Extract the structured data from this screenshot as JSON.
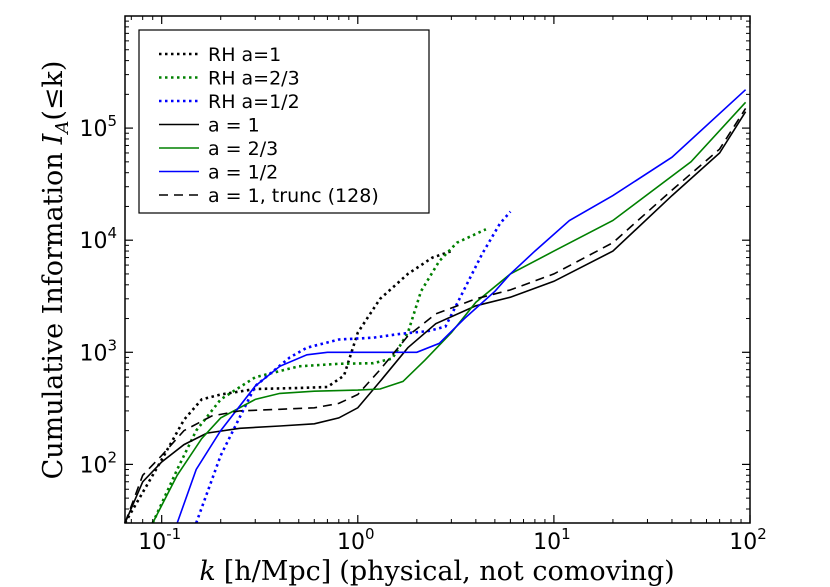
{
  "chart_data": {
    "type": "line",
    "xscale": "log",
    "yscale": "log",
    "xlim": [
      0.065,
      100
    ],
    "ylim": [
      30,
      1000000
    ],
    "xlabel_math": "k",
    "xlabel_unit": "[h/Mpc]",
    "xlabel_note": "(physical, not comoving)",
    "ylabel_text": "Cumulative Information",
    "ylabel_math": "I",
    "ylabel_sub": "A",
    "ylabel_arg": "(≤k)",
    "x_ticks": [
      {
        "value": 0.1,
        "base": "10",
        "exp": "-1"
      },
      {
        "value": 1,
        "base": "10",
        "exp": "0"
      },
      {
        "value": 10,
        "base": "10",
        "exp": "1"
      },
      {
        "value": 100,
        "base": "10",
        "exp": "2"
      }
    ],
    "y_ticks": [
      {
        "value": 100,
        "base": "10",
        "exp": "2"
      },
      {
        "value": 1000,
        "base": "10",
        "exp": "3"
      },
      {
        "value": 10000,
        "base": "10",
        "exp": "4"
      },
      {
        "value": 100000,
        "base": "10",
        "exp": "5"
      }
    ],
    "legend_position": "upper-left",
    "series": [
      {
        "name": "RH a=1",
        "color": "#000000",
        "style": "dotted",
        "x": [
          0.065,
          0.1,
          0.13,
          0.16,
          0.2,
          0.3,
          0.5,
          0.7,
          0.85,
          1.0,
          1.3,
          1.8,
          2.4,
          3.0
        ],
        "y": [
          30,
          110,
          250,
          380,
          420,
          470,
          480,
          490,
          620,
          1500,
          3000,
          5000,
          7000,
          8000
        ]
      },
      {
        "name": "RH a=2/3",
        "color": "#008000",
        "style": "dotted",
        "x": [
          0.09,
          0.12,
          0.15,
          0.2,
          0.3,
          0.5,
          0.8,
          1.2,
          1.5,
          1.8,
          2.1,
          2.6,
          3.2,
          4.5
        ],
        "y": [
          30,
          90,
          200,
          380,
          600,
          750,
          790,
          800,
          880,
          1500,
          3500,
          6500,
          9500,
          12500
        ]
      },
      {
        "name": "RH a=1/2",
        "color": "#0000ff",
        "style": "dotted",
        "x": [
          0.15,
          0.2,
          0.3,
          0.45,
          0.55,
          0.8,
          1.2,
          1.6,
          2.3,
          2.8,
          3.3,
          4.3,
          5.3,
          6.0
        ],
        "y": [
          30,
          120,
          500,
          900,
          1100,
          1300,
          1350,
          1450,
          1550,
          1700,
          3000,
          7500,
          14000,
          18000
        ]
      },
      {
        "name": "a = 1",
        "color": "#000000",
        "style": "solid",
        "x": [
          0.065,
          0.08,
          0.1,
          0.13,
          0.17,
          0.25,
          0.4,
          0.6,
          0.8,
          1.0,
          1.3,
          1.8,
          2.5,
          4,
          6,
          10,
          20,
          40,
          70,
          95
        ],
        "y": [
          30,
          70,
          105,
          150,
          190,
          210,
          220,
          230,
          260,
          320,
          550,
          1100,
          1800,
          2600,
          3100,
          4300,
          8000,
          25000,
          60000,
          140000
        ]
      },
      {
        "name": "a = 2/3",
        "color": "#008000",
        "style": "solid",
        "x": [
          0.09,
          0.12,
          0.16,
          0.2,
          0.3,
          0.4,
          0.6,
          1.0,
          1.3,
          1.7,
          2.2,
          3.0,
          4,
          6,
          10,
          20,
          50,
          95
        ],
        "y": [
          30,
          80,
          170,
          260,
          380,
          430,
          450,
          460,
          470,
          550,
          850,
          1500,
          2800,
          5000,
          8000,
          15000,
          50000,
          170000
        ]
      },
      {
        "name": "a = 1/2",
        "color": "#0000ff",
        "style": "solid",
        "x": [
          0.12,
          0.15,
          0.2,
          0.3,
          0.4,
          0.55,
          0.7,
          1.0,
          1.4,
          2.0,
          2.6,
          3.5,
          5,
          6,
          8,
          12,
          20,
          40,
          95
        ],
        "y": [
          30,
          90,
          200,
          500,
          750,
          950,
          1000,
          1000,
          1000,
          1000,
          1200,
          2000,
          3500,
          5000,
          8000,
          15000,
          25000,
          55000,
          220000
        ]
      },
      {
        "name": "a = 1, trunc (128)",
        "color": "#000000",
        "style": "dashed",
        "x": [
          0.065,
          0.08,
          0.1,
          0.13,
          0.18,
          0.25,
          0.4,
          0.6,
          0.8,
          1.0,
          1.3,
          1.8,
          2.5,
          4,
          6,
          10,
          20,
          40,
          70,
          95
        ],
        "y": [
          30,
          80,
          120,
          200,
          270,
          300,
          310,
          320,
          350,
          420,
          700,
          1400,
          2200,
          3000,
          3600,
          5000,
          9500,
          28000,
          65000,
          150000
        ]
      }
    ]
  }
}
